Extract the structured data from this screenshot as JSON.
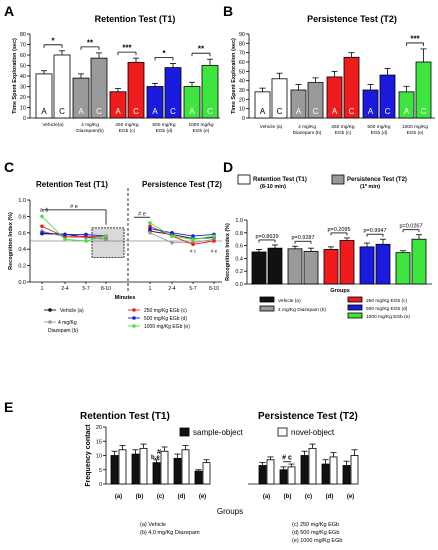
{
  "colors": {
    "white": "#ffffff",
    "gray": "#9a9a9a",
    "red": "#ee1c1c",
    "blue": "#1b1be0",
    "green": "#3fe53f",
    "black": "#111111"
  },
  "chart_data": [
    {
      "panel": "A",
      "type": "bar",
      "title": "Retention Test (T1)",
      "ylabel": "Time Spent Exploration (sec)",
      "ylim": [
        0,
        80
      ],
      "yticks": [
        0,
        10,
        20,
        30,
        40,
        50,
        60,
        70,
        80
      ],
      "groups": [
        "Vehicle(a)",
        "4 mg/Kg Diazepam(b)",
        "250 mg/Kg EGb (c)",
        "500 mg/Kg EGb (d)",
        "1000 mg/kg EGb (e)"
      ],
      "bars": [
        {
          "group": 0,
          "label": "A",
          "value": 42,
          "err": 3,
          "color": "white"
        },
        {
          "group": 0,
          "label": "C",
          "value": 60,
          "err": 4,
          "color": "white"
        },
        {
          "group": 1,
          "label": "A",
          "value": 38,
          "err": 4,
          "color": "gray"
        },
        {
          "group": 1,
          "label": "C",
          "value": 57,
          "err": 5,
          "color": "gray"
        },
        {
          "group": 2,
          "label": "A",
          "value": 25,
          "err": 3,
          "color": "red"
        },
        {
          "group": 2,
          "label": "C",
          "value": 53,
          "err": 4,
          "color": "red"
        },
        {
          "group": 3,
          "label": "A",
          "value": 30,
          "err": 3,
          "color": "blue"
        },
        {
          "group": 3,
          "label": "C",
          "value": 48,
          "err": 4,
          "color": "blue"
        },
        {
          "group": 4,
          "label": "A",
          "value": 30,
          "err": 4,
          "color": "green"
        },
        {
          "group": 4,
          "label": "C",
          "value": 50,
          "err": 6,
          "color": "green"
        }
      ],
      "significance": [
        "*",
        "**",
        "***",
        "*",
        "**"
      ]
    },
    {
      "panel": "B",
      "type": "bar",
      "title": "Persistence Test (T2)",
      "ylabel": "Time Spent Exploration (sec)",
      "ylim": [
        0,
        90
      ],
      "yticks": [
        0,
        10,
        20,
        30,
        40,
        50,
        60,
        70,
        80,
        90
      ],
      "groups": [
        "Vehicle (a)",
        "4 mg/Kg Diazepam (b)",
        "250 mg/Kg EGb (c)",
        "500 mg/Kg EGb (d)",
        "1000 mg/Kg EGb (e)"
      ],
      "bars": [
        {
          "group": 0,
          "label": "A",
          "value": 28,
          "err": 4,
          "color": "white"
        },
        {
          "group": 0,
          "label": "C",
          "value": 42,
          "err": 6,
          "color": "white"
        },
        {
          "group": 1,
          "label": "A",
          "value": 30,
          "err": 6,
          "color": "gray"
        },
        {
          "group": 1,
          "label": "C",
          "value": 38,
          "err": 5,
          "color": "gray"
        },
        {
          "group": 2,
          "label": "A",
          "value": 44,
          "err": 6,
          "color": "red"
        },
        {
          "group": 2,
          "label": "C",
          "value": 65,
          "err": 5,
          "color": "red"
        },
        {
          "group": 3,
          "label": "A",
          "value": 30,
          "err": 6,
          "color": "blue"
        },
        {
          "group": 3,
          "label": "C",
          "value": 46,
          "err": 7,
          "color": "blue"
        },
        {
          "group": 4,
          "label": "A",
          "value": 28,
          "err": 6,
          "color": "green"
        },
        {
          "group": 4,
          "label": "C",
          "value": 60,
          "err": 14,
          "color": "green"
        }
      ],
      "significance": [
        "",
        "",
        "",
        "",
        "***"
      ]
    },
    {
      "panel": "C",
      "type": "line",
      "title_left": "Retention Test (T1)",
      "title_right": "Persistence Test (T2)",
      "ylabel": "Recognition Index (%)",
      "xlabel": "Minutes",
      "ylim": [
        0,
        1.0
      ],
      "yticks": [
        0.0,
        0.2,
        0.4,
        0.6,
        0.8,
        1.0
      ],
      "x": [
        "1",
        "2-4",
        "5-7",
        "8-10",
        "1",
        "2-4",
        "5-7",
        "8-10"
      ],
      "series": [
        {
          "name": "Vehicle (a)",
          "color": "black",
          "values": [
            0.59,
            0.58,
            0.55,
            0.52,
            0.62,
            0.58,
            0.53,
            0.54
          ]
        },
        {
          "name": "4 mg/Kg Diazepam (b)",
          "color": "gray",
          "values": [
            0.62,
            0.55,
            0.54,
            0.52,
            0.6,
            0.48,
            0.48,
            0.52
          ]
        },
        {
          "name": "250 mg/Kg EGb (c)",
          "color": "red",
          "values": [
            0.68,
            0.55,
            0.56,
            0.55,
            0.68,
            0.56,
            0.46,
            0.5
          ]
        },
        {
          "name": "500 mg/Kg EGb (d)",
          "color": "blue",
          "values": [
            0.6,
            0.58,
            0.58,
            0.56,
            0.65,
            0.6,
            0.56,
            0.58
          ]
        },
        {
          "name": "1000 mg/Kg EGb (e)",
          "color": "green",
          "values": [
            0.8,
            0.52,
            0.5,
            0.56,
            0.72,
            0.56,
            0.52,
            0.56
          ]
        }
      ],
      "annotations": [
        "# e",
        "a, b",
        "# e",
        "# c",
        "# e"
      ],
      "reference_line": 0.5
    },
    {
      "panel": "D",
      "type": "bar",
      "legend_t1": "Retention Test (T1)",
      "legend_t1_sub": "(8-10 min)",
      "legend_t2": "Persistence Test (T2)",
      "legend_t2_sub": "(1º min)",
      "ylabel": "Recognition Index (%)",
      "xlabel": "Groups",
      "ylim": [
        0,
        1.0
      ],
      "yticks": [
        0.0,
        0.2,
        0.4,
        0.6,
        0.8,
        1.0
      ],
      "bars": [
        {
          "group": 0,
          "value": 0.5,
          "err": 0.04,
          "color": "black"
        },
        {
          "group": 0,
          "value": 0.56,
          "err": 0.05,
          "color": "black"
        },
        {
          "group": 1,
          "value": 0.55,
          "err": 0.04,
          "color": "gray"
        },
        {
          "group": 1,
          "value": 0.51,
          "err": 0.05,
          "color": "gray"
        },
        {
          "group": 2,
          "value": 0.54,
          "err": 0.04,
          "color": "red"
        },
        {
          "group": 2,
          "value": 0.68,
          "err": 0.04,
          "color": "red"
        },
        {
          "group": 3,
          "value": 0.58,
          "err": 0.06,
          "color": "blue"
        },
        {
          "group": 3,
          "value": 0.62,
          "err": 0.08,
          "color": "blue"
        },
        {
          "group": 4,
          "value": 0.49,
          "err": 0.03,
          "color": "green"
        },
        {
          "group": 4,
          "value": 0.7,
          "err": 0.07,
          "color": "green"
        }
      ],
      "pvalues": [
        "p=0.8639",
        "p=0.9287",
        "p=0.2095",
        "p=0.9947",
        "p=0.0267"
      ]
    },
    {
      "panel": "E",
      "type": "bar",
      "title_left": "Retention Test (T1)",
      "title_right": "Persistence Test (T2)",
      "legend": [
        "sample-object",
        "novel-object"
      ],
      "ylabel": "Frequency contact",
      "xlabel": "Groups",
      "ylim": [
        0,
        20
      ],
      "yticks": [
        0,
        5,
        10,
        15,
        20
      ],
      "categories": [
        "(a)",
        "(b)",
        "(c)",
        "(d)",
        "(e)"
      ],
      "t1_sample": [
        10.0,
        10.5,
        7.5,
        9.0,
        4.5
      ],
      "t1_sample_err": [
        1.5,
        1.5,
        1.0,
        1.5,
        0.5
      ],
      "t1_novel": [
        12.0,
        12.5,
        11.5,
        12.0,
        7.5
      ],
      "t1_novel_err": [
        1.5,
        1.5,
        1.5,
        1.5,
        1.0
      ],
      "t2_sample": [
        6.5,
        5.0,
        10.0,
        7.0,
        6.5
      ],
      "t2_sample_err": [
        1.0,
        1.0,
        1.5,
        1.5,
        1.5
      ],
      "t2_novel": [
        8.5,
        6.0,
        12.5,
        9.5,
        10.0
      ],
      "t2_novel_err": [
        1.0,
        1.0,
        1.5,
        1.5,
        2.0
      ],
      "annotations": [
        "#",
        "b,e",
        "# c"
      ],
      "group_legend": [
        "(a) Vehicle",
        "(b) 4,0 mg/Kg Diazepam",
        "(c) 250 mg/Kg EGb",
        "(d) 500 mg/Kg EGb",
        "(e) 1000 mg/Kg EGb"
      ]
    }
  ],
  "panel_letters": [
    "A",
    "B",
    "C",
    "D",
    "E"
  ]
}
